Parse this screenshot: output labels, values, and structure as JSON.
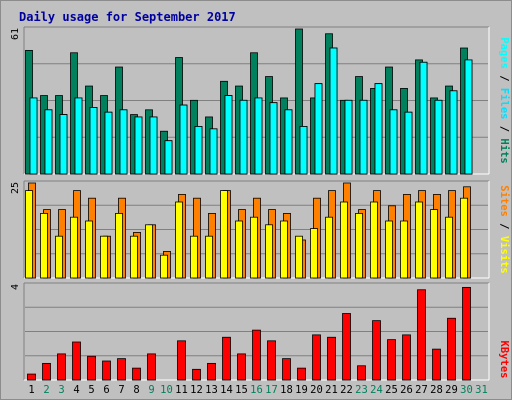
{
  "chart_data": [
    {
      "type": "bar",
      "title": "Daily usage for September 2017",
      "ylim": [
        0,
        61
      ],
      "max_label": "61",
      "right_labels": [
        "Pages",
        "Files",
        "Hits"
      ],
      "categories": [
        "1",
        "2",
        "3",
        "4",
        "5",
        "6",
        "7",
        "8",
        "9",
        "10",
        "11",
        "12",
        "13",
        "14",
        "15",
        "16",
        "17",
        "18",
        "19",
        "20",
        "21",
        "22",
        "23",
        "24",
        "25",
        "26",
        "27",
        "28",
        "29",
        "30",
        "31"
      ],
      "weekend_categories": [
        "2",
        "3",
        "9",
        "10",
        "16",
        "17",
        "23",
        "24",
        "30",
        "31"
      ],
      "series": [
        {
          "name": "Hits",
          "color": "#00805c",
          "values": [
            52,
            33,
            33,
            51,
            37,
            33,
            45,
            25,
            27,
            18,
            49,
            31,
            24,
            39,
            37,
            51,
            41,
            32,
            61,
            32,
            59,
            31,
            41,
            36,
            45,
            36,
            48,
            32,
            37,
            53,
            0
          ]
        },
        {
          "name": "Files",
          "color": "#00e0ff",
          "values": [
            32,
            27,
            25,
            32,
            28,
            26,
            27,
            24,
            24,
            14,
            29,
            20,
            19,
            33,
            31,
            32,
            30,
            27,
            20,
            38,
            53,
            31,
            31,
            38,
            27,
            26,
            47,
            31,
            35,
            48,
            0
          ]
        },
        {
          "name": "Pages",
          "color": "#00ffff",
          "values": [
            32,
            27,
            25,
            32,
            28,
            26,
            27,
            24,
            24,
            14,
            29,
            20,
            19,
            33,
            31,
            32,
            30,
            27,
            20,
            38,
            53,
            31,
            31,
            38,
            27,
            26,
            47,
            31,
            35,
            48,
            0
          ]
        }
      ]
    },
    {
      "type": "bar",
      "ylim": [
        0,
        25
      ],
      "max_label": "25",
      "right_labels": [
        "Sites",
        "Visits"
      ],
      "series": [
        {
          "name": "Visits",
          "color": "#ffff00",
          "values": [
            23,
            17,
            11,
            16,
            15,
            11,
            17,
            11,
            14,
            6,
            20,
            11,
            11,
            23,
            15,
            16,
            14,
            15,
            11,
            13,
            16,
            20,
            17,
            20,
            15,
            15,
            20,
            18,
            16,
            21,
            0
          ]
        },
        {
          "name": "Sites",
          "color": "#ff8000",
          "values": [
            25,
            18,
            18,
            23,
            21,
            11,
            21,
            12,
            14,
            7,
            22,
            21,
            17,
            23,
            18,
            21,
            18,
            17,
            10,
            21,
            23,
            25,
            18,
            23,
            19,
            22,
            23,
            22,
            23,
            24,
            0
          ]
        }
      ]
    },
    {
      "type": "bar",
      "ylim": [
        0,
        4
      ],
      "max_label": "4",
      "right_labels": [
        "KBytes"
      ],
      "series": [
        {
          "name": "KBytes",
          "color": "#ff0000",
          "values": [
            0.25,
            0.7,
            1.1,
            1.6,
            1.0,
            0.8,
            0.9,
            0.5,
            1.1,
            0,
            1.65,
            0.45,
            0.7,
            1.8,
            1.1,
            2.1,
            1.65,
            0.9,
            0.5,
            1.9,
            1.8,
            2.8,
            0.6,
            2.5,
            1.7,
            1.9,
            3.8,
            1.3,
            2.6,
            3.9,
            0
          ]
        }
      ]
    }
  ]
}
